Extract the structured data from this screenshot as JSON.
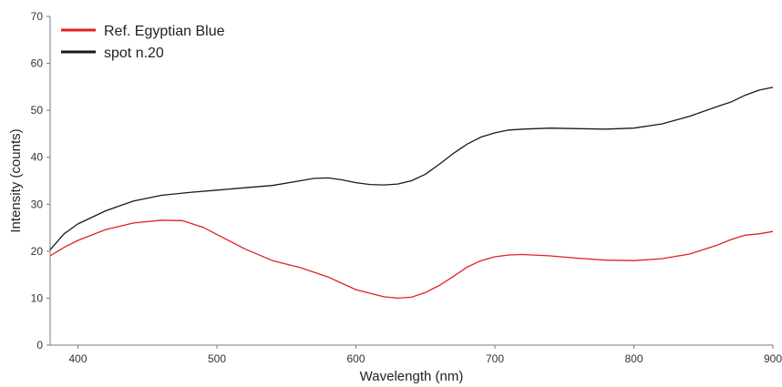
{
  "chart_data": {
    "type": "line",
    "xlabel": "Wavelength (nm)",
    "ylabel": "Intensity (counts)",
    "xlim": [
      380,
      900
    ],
    "ylim": [
      0,
      70
    ],
    "x_ticks": [
      400,
      500,
      600,
      700,
      800,
      900
    ],
    "y_ticks": [
      0,
      10,
      20,
      30,
      40,
      50,
      60,
      70
    ],
    "grid": false,
    "legend_position": "top-left",
    "series": [
      {
        "name": "Ref. Egyptian Blue",
        "color": "#e02020",
        "x": [
          380,
          390,
          400,
          420,
          440,
          460,
          475,
          490,
          505,
          520,
          540,
          560,
          580,
          600,
          620,
          630,
          640,
          650,
          660,
          670,
          680,
          690,
          700,
          710,
          720,
          740,
          760,
          780,
          800,
          820,
          840,
          860,
          870,
          880,
          890,
          900
        ],
        "y": [
          19.0,
          20.8,
          22.3,
          24.6,
          26.0,
          26.6,
          26.5,
          25.1,
          22.8,
          20.5,
          18.0,
          16.5,
          14.5,
          11.8,
          10.3,
          10.0,
          10.2,
          11.2,
          12.7,
          14.6,
          16.6,
          18.0,
          18.8,
          19.2,
          19.3,
          19.0,
          18.5,
          18.1,
          18.0,
          18.4,
          19.4,
          21.3,
          22.5,
          23.4,
          23.7,
          24.2
        ]
      },
      {
        "name": "spot n.20",
        "color": "#1a1a1a",
        "x": [
          380,
          390,
          400,
          420,
          440,
          460,
          480,
          500,
          520,
          540,
          560,
          570,
          580,
          590,
          600,
          610,
          620,
          630,
          640,
          650,
          660,
          670,
          680,
          690,
          700,
          710,
          720,
          740,
          760,
          780,
          800,
          820,
          840,
          860,
          870,
          880,
          890,
          900
        ],
        "y": [
          20.3,
          23.7,
          25.8,
          28.6,
          30.7,
          31.9,
          32.5,
          33.0,
          33.5,
          34.0,
          35.0,
          35.5,
          35.6,
          35.2,
          34.6,
          34.2,
          34.1,
          34.3,
          35.0,
          36.4,
          38.5,
          40.8,
          42.8,
          44.3,
          45.2,
          45.8,
          46.0,
          46.2,
          46.1,
          46.0,
          46.2,
          47.1,
          48.7,
          50.8,
          51.8,
          53.2,
          54.3,
          54.9
        ]
      }
    ]
  }
}
